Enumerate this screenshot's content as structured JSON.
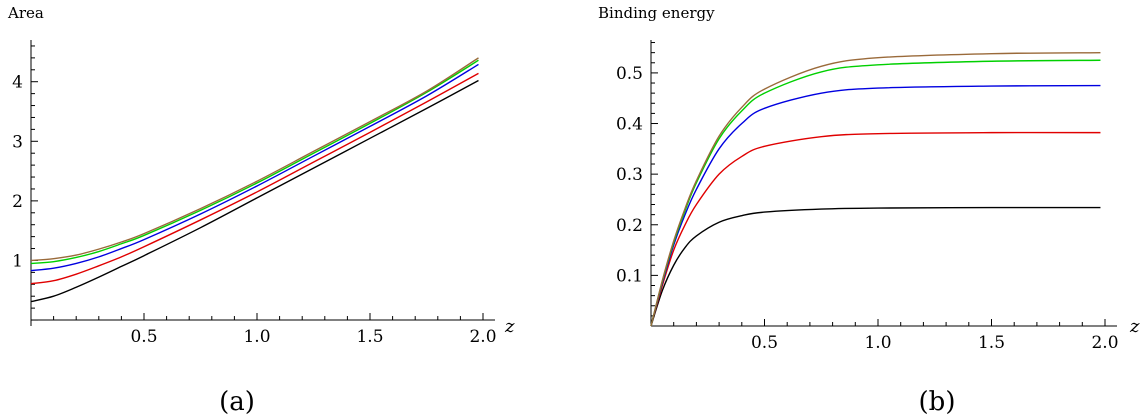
{
  "chart_data": [
    {
      "type": "line",
      "ylabel": "Area",
      "xlabel": "z",
      "caption": "(a)",
      "xlim": [
        0,
        2.0
      ],
      "ylim": [
        -0.1,
        4.7
      ],
      "xticks": [
        0.5,
        1.0,
        1.5,
        2.0
      ],
      "xtick_labels": [
        "0.5",
        "1.0",
        "1.5",
        "2.0"
      ],
      "yticks": [
        1,
        2,
        3,
        4
      ],
      "ytick_labels": [
        "1",
        "2",
        "3",
        "4"
      ],
      "grid": false,
      "series": [
        {
          "color": "#000000",
          "x": [
            0,
            0.1,
            0.2,
            0.3,
            0.4,
            0.5,
            0.75,
            1.0,
            1.25,
            1.5,
            1.75,
            1.98
          ],
          "y": [
            0.31,
            0.4,
            0.55,
            0.72,
            0.9,
            1.08,
            1.55,
            2.05,
            2.55,
            3.05,
            3.55,
            4.02
          ]
        },
        {
          "color": "#e00000",
          "x": [
            0,
            0.1,
            0.2,
            0.3,
            0.4,
            0.5,
            0.75,
            1.0,
            1.25,
            1.5,
            1.75,
            1.98
          ],
          "y": [
            0.61,
            0.66,
            0.77,
            0.91,
            1.06,
            1.23,
            1.68,
            2.15,
            2.65,
            3.15,
            3.66,
            4.14
          ]
        },
        {
          "color": "#0000e0",
          "x": [
            0,
            0.1,
            0.2,
            0.3,
            0.4,
            0.5,
            0.75,
            1.0,
            1.25,
            1.5,
            1.75,
            1.98
          ],
          "y": [
            0.83,
            0.87,
            0.95,
            1.06,
            1.2,
            1.35,
            1.78,
            2.25,
            2.75,
            3.25,
            3.76,
            4.29
          ]
        },
        {
          "color": "#00d000",
          "x": [
            0,
            0.1,
            0.2,
            0.3,
            0.4,
            0.5,
            0.75,
            1.0,
            1.25,
            1.5,
            1.75,
            1.98
          ],
          "y": [
            0.95,
            0.98,
            1.05,
            1.15,
            1.28,
            1.42,
            1.84,
            2.3,
            2.8,
            3.3,
            3.82,
            4.36
          ]
        },
        {
          "color": "#9a6a3a",
          "x": [
            0,
            0.1,
            0.2,
            0.3,
            0.4,
            0.5,
            0.75,
            1.0,
            1.25,
            1.5,
            1.75,
            1.98
          ],
          "y": [
            1.0,
            1.03,
            1.09,
            1.19,
            1.31,
            1.45,
            1.87,
            2.33,
            2.83,
            3.33,
            3.84,
            4.4
          ]
        }
      ]
    },
    {
      "type": "line",
      "ylabel": "Binding energy",
      "xlabel": "z",
      "caption": "(b)",
      "xlim": [
        0,
        2.0
      ],
      "ylim": [
        0,
        0.565
      ],
      "xticks": [
        0.5,
        1.0,
        1.5,
        2.0
      ],
      "xtick_labels": [
        "0.5",
        "1.0",
        "1.5",
        "2.0"
      ],
      "yticks": [
        0.1,
        0.2,
        0.3,
        0.4,
        0.5
      ],
      "ytick_labels": [
        "0.1",
        "0.2",
        "0.3",
        "0.4",
        "0.5"
      ],
      "grid": false,
      "series": [
        {
          "color": "#000000",
          "x": [
            0,
            0.05,
            0.1,
            0.15,
            0.2,
            0.3,
            0.4,
            0.5,
            0.75,
            1.0,
            1.5,
            1.98
          ],
          "y": [
            0,
            0.07,
            0.12,
            0.155,
            0.178,
            0.205,
            0.218,
            0.225,
            0.231,
            0.233,
            0.234,
            0.234
          ]
        },
        {
          "color": "#e00000",
          "x": [
            0,
            0.05,
            0.1,
            0.15,
            0.2,
            0.3,
            0.4,
            0.5,
            0.75,
            1.0,
            1.5,
            1.98
          ],
          "y": [
            0,
            0.08,
            0.15,
            0.2,
            0.24,
            0.3,
            0.335,
            0.355,
            0.374,
            0.38,
            0.382,
            0.382
          ]
        },
        {
          "color": "#0000e0",
          "x": [
            0,
            0.05,
            0.1,
            0.15,
            0.2,
            0.3,
            0.4,
            0.5,
            0.75,
            1.0,
            1.5,
            1.98
          ],
          "y": [
            0,
            0.085,
            0.16,
            0.22,
            0.27,
            0.35,
            0.4,
            0.43,
            0.46,
            0.47,
            0.474,
            0.475
          ]
        },
        {
          "color": "#00d000",
          "x": [
            0,
            0.05,
            0.1,
            0.15,
            0.2,
            0.3,
            0.4,
            0.5,
            0.75,
            1.0,
            1.5,
            1.98
          ],
          "y": [
            0,
            0.088,
            0.165,
            0.228,
            0.283,
            0.37,
            0.425,
            0.46,
            0.502,
            0.516,
            0.523,
            0.525
          ]
        },
        {
          "color": "#9a6a3a",
          "x": [
            0,
            0.05,
            0.1,
            0.15,
            0.2,
            0.3,
            0.4,
            0.5,
            0.75,
            1.0,
            1.5,
            1.98
          ],
          "y": [
            0,
            0.09,
            0.168,
            0.232,
            0.287,
            0.375,
            0.432,
            0.468,
            0.513,
            0.53,
            0.538,
            0.54
          ]
        }
      ]
    }
  ]
}
